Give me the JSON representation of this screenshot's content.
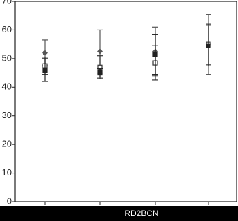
{
  "chart_data": {
    "type": "errorbar",
    "categories": [
      null,
      null,
      null,
      null
    ],
    "series": [
      {
        "marker": "diamond",
        "color": "#555",
        "values": [
          52,
          52.5,
          52.5,
          55
        ],
        "errors": [
          4.5,
          7.5,
          8.5,
          10.5
        ]
      },
      {
        "marker": "open-square",
        "color": "#333",
        "values": [
          47.5,
          47,
          48.5,
          55
        ],
        "errors": [
          3,
          4,
          6,
          7
        ]
      },
      {
        "marker": "square",
        "color": "#222",
        "values": [
          46,
          45,
          51.5,
          54.5
        ],
        "errors": [
          4,
          1.5,
          7,
          7
        ]
      }
    ],
    "ylim": [
      0,
      70
    ],
    "yticks": [
      0,
      10,
      20,
      30,
      40,
      50,
      60,
      70
    ]
  },
  "watermark": "RD2BCN"
}
